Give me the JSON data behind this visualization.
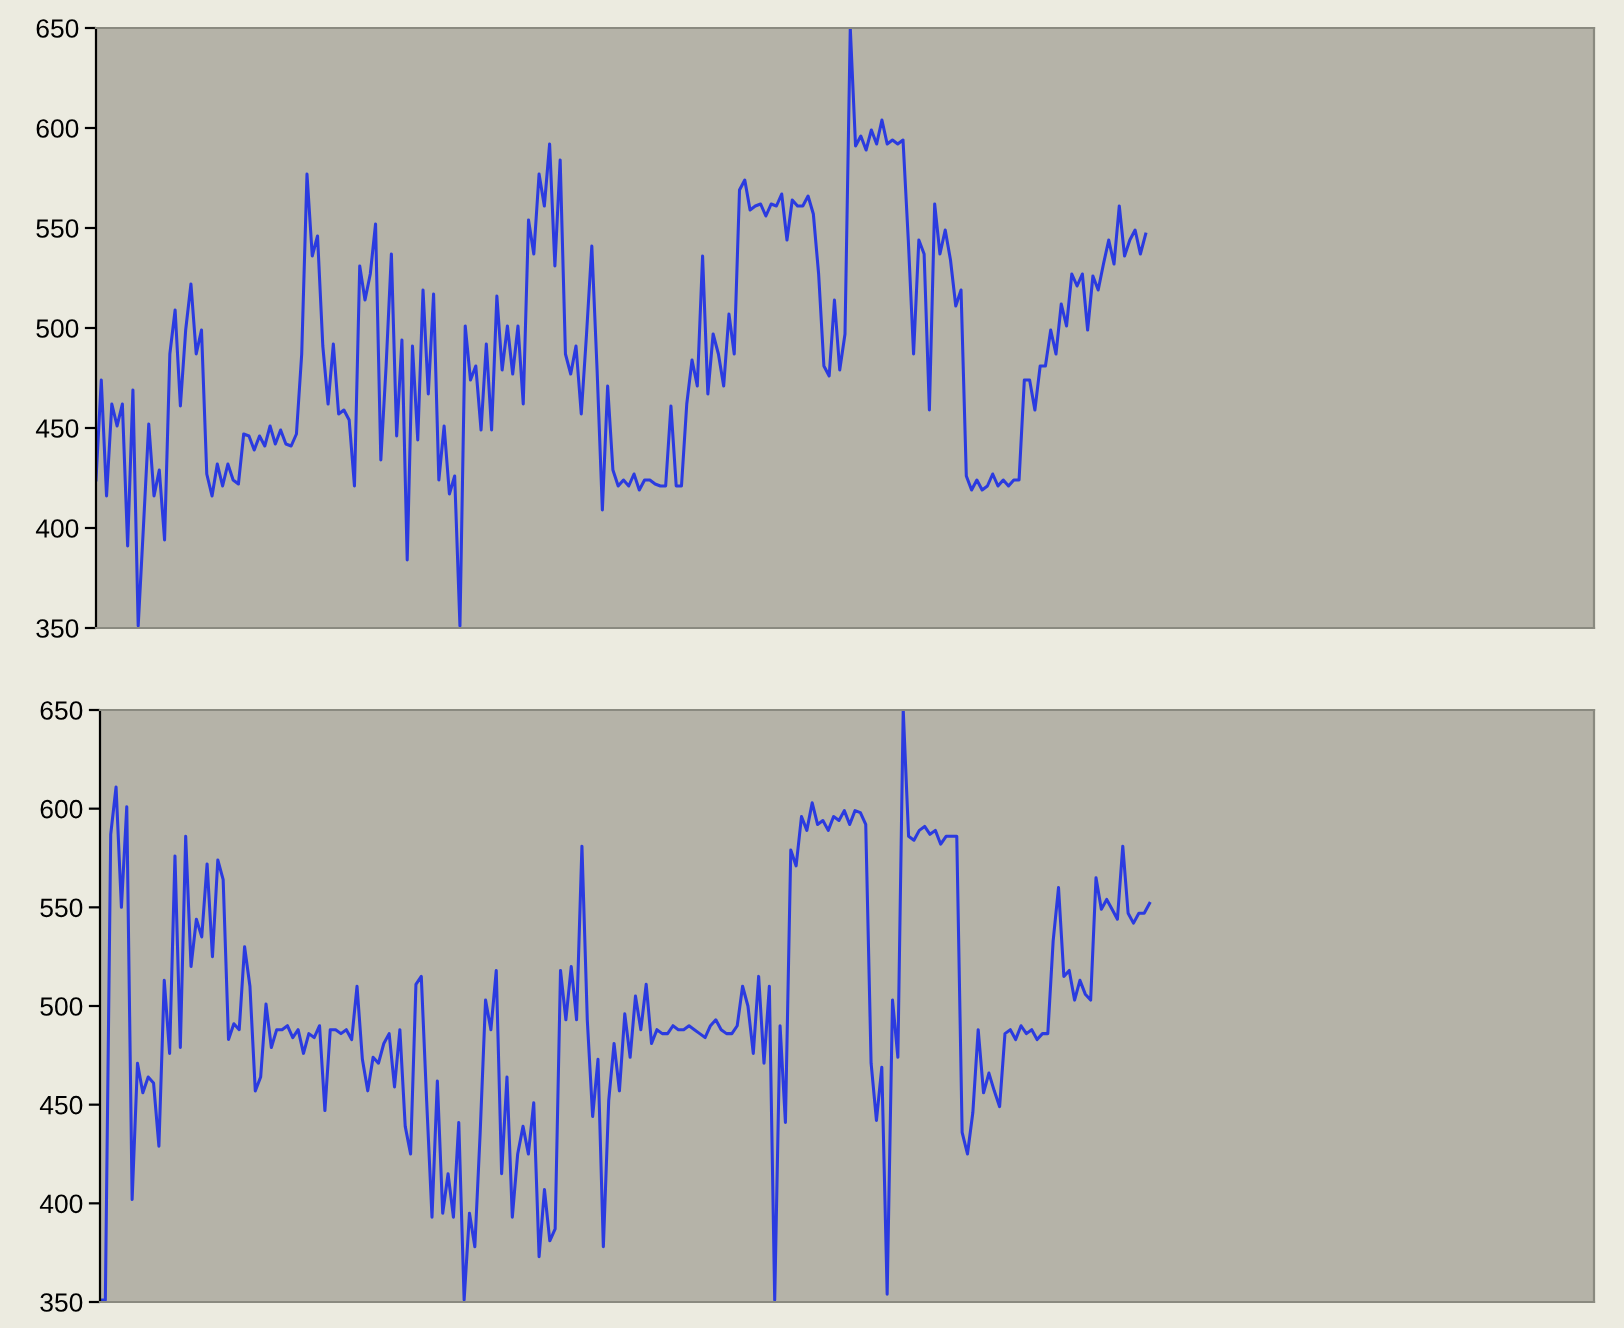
{
  "chart_data": [
    {
      "type": "line",
      "relative": false,
      "categories": [
        null,
        null,
        null,
        null,
        null,
        null,
        null,
        null,
        null,
        null,
        null,
        null,
        null,
        null,
        null,
        null,
        null,
        null,
        null,
        null,
        null,
        null,
        null,
        null,
        null,
        null,
        null,
        null,
        null,
        null,
        null,
        null,
        null,
        null,
        null,
        null,
        null,
        null,
        null,
        null,
        null,
        null,
        null,
        null,
        null,
        null,
        null,
        null,
        null,
        null,
        null,
        null,
        null,
        null,
        null,
        null,
        null,
        null,
        null,
        null,
        null,
        null,
        null,
        null,
        null,
        null,
        null,
        null,
        null,
        null,
        null,
        null,
        null,
        null,
        null,
        null,
        null,
        null,
        null,
        null,
        null,
        null,
        null,
        null,
        null,
        null,
        null,
        null,
        null,
        null,
        null,
        null,
        null,
        null,
        null,
        null,
        null,
        null,
        null,
        null,
        null,
        null,
        null,
        null,
        null,
        null,
        null,
        null,
        null,
        null,
        null,
        null,
        null,
        null,
        null,
        null,
        null,
        null,
        null,
        null,
        null,
        null,
        null,
        null,
        null,
        null,
        null,
        null,
        null,
        null,
        null,
        null,
        null,
        null,
        null,
        null,
        null,
        null,
        null,
        null,
        null,
        null,
        null,
        null,
        null,
        null,
        null,
        null,
        null,
        null,
        null,
        null,
        null,
        null,
        null,
        null,
        null,
        null,
        null,
        null,
        null,
        null,
        null,
        null,
        null,
        null,
        null,
        null,
        null,
        null,
        null,
        null,
        null,
        null,
        null,
        null,
        null,
        null,
        null,
        null,
        null,
        null,
        null,
        null,
        null,
        null,
        null,
        null,
        null,
        null,
        null,
        null,
        null,
        null,
        null,
        null,
        null,
        null,
        null,
        null,
        null,
        null,
        null,
        null,
        null,
        null,
        null,
        null,
        null,
        null,
        null,
        null,
        null,
        null,
        null,
        null,
        null,
        null,
        null,
        null,
        null,
        null,
        null,
        null,
        null,
        null,
        null,
        null,
        null,
        null,
        null,
        null,
        null,
        null,
        null,
        null,
        null,
        null,
        null,
        null,
        null,
        null,
        null,
        null,
        null,
        null,
        null,
        null,
        null,
        null,
        null,
        null,
        null,
        null,
        null,
        null,
        null,
        null,
        null,
        null,
        null,
        null,
        null,
        null,
        null,
        null,
        null,
        null,
        null,
        null,
        null,
        null,
        null,
        null,
        null,
        null,
        null,
        null,
        null,
        null,
        null,
        null,
        null,
        null,
        null
      ],
      "series": [
        {
          "color": "#2b3be0",
          "values": [
            424,
            474,
            416,
            462,
            451,
            462,
            391,
            469,
            351,
            401,
            452,
            416,
            429,
            394,
            487,
            509,
            461,
            499,
            522,
            487,
            499,
            427,
            416,
            432,
            421,
            432,
            424,
            422,
            447,
            446,
            439,
            446,
            441,
            451,
            442,
            449,
            442,
            441,
            447,
            487,
            577,
            536,
            546,
            491,
            462,
            492,
            457,
            459,
            454,
            421,
            531,
            514,
            527,
            552,
            434,
            481,
            537,
            446,
            494,
            384,
            491,
            444,
            519,
            467,
            517,
            424,
            451,
            417,
            426,
            351,
            501,
            474,
            481,
            449,
            492,
            449,
            516,
            479,
            501,
            477,
            501,
            462,
            554,
            537,
            577,
            561,
            592,
            531,
            584,
            487,
            477,
            491,
            457,
            497,
            541,
            479,
            409,
            471,
            429,
            421,
            424,
            421,
            427,
            419,
            424,
            424,
            422,
            421,
            421,
            461,
            421,
            421,
            462,
            484,
            471,
            536,
            467,
            497,
            487,
            471,
            507,
            487,
            569,
            574,
            559,
            561,
            562,
            556,
            562,
            561,
            567,
            544,
            564,
            561,
            561,
            566,
            557,
            527,
            481,
            476,
            514,
            479,
            497,
            650,
            591,
            596,
            589,
            599,
            592,
            604,
            592,
            594,
            592,
            594,
            544,
            487,
            544,
            537,
            459,
            562,
            537,
            549,
            534,
            511,
            519,
            426,
            419,
            424,
            419,
            421,
            427,
            421,
            424,
            421,
            424,
            424,
            474,
            474,
            459,
            481,
            481,
            499,
            487,
            512,
            501,
            527,
            521,
            527,
            499,
            526,
            519,
            532,
            544,
            532,
            561,
            536,
            544,
            549,
            537,
            547,
            null,
            null,
            null,
            null,
            null,
            null,
            null,
            null,
            null,
            null,
            null,
            null,
            null,
            null,
            null,
            null,
            null,
            null,
            null,
            null,
            null,
            null,
            null,
            null,
            null,
            null,
            null,
            null,
            null,
            null,
            null,
            null,
            null,
            null,
            null,
            null,
            null,
            null,
            null,
            null,
            null,
            null,
            null,
            null,
            null,
            null,
            null,
            null,
            null,
            null,
            null,
            null,
            null,
            null,
            null,
            null,
            null,
            null,
            null,
            null,
            null,
            null,
            null,
            null,
            null,
            null,
            null,
            null,
            null,
            null,
            null,
            null,
            null,
            null,
            null,
            null,
            null,
            null,
            null,
            null,
            null,
            null,
            null,
            null,
            null
          ]
        }
      ],
      "ylim": [
        350,
        650
      ],
      "yticks": [
        350,
        400,
        450,
        500,
        550,
        600,
        650
      ],
      "tick_labels": "y",
      "grid": false,
      "marker": "none",
      "line_style": "solid"
    },
    {
      "type": "line",
      "relative": false,
      "categories": [
        null,
        null,
        null,
        null,
        null,
        null,
        null,
        null,
        null,
        null,
        null,
        null,
        null,
        null,
        null,
        null,
        null,
        null,
        null,
        null,
        null,
        null,
        null,
        null,
        null,
        null,
        null,
        null,
        null,
        null,
        null,
        null,
        null,
        null,
        null,
        null,
        null,
        null,
        null,
        null,
        null,
        null,
        null,
        null,
        null,
        null,
        null,
        null,
        null,
        null,
        null,
        null,
        null,
        null,
        null,
        null,
        null,
        null,
        null,
        null,
        null,
        null,
        null,
        null,
        null,
        null,
        null,
        null,
        null,
        null,
        null,
        null,
        null,
        null,
        null,
        null,
        null,
        null,
        null,
        null,
        null,
        null,
        null,
        null,
        null,
        null,
        null,
        null,
        null,
        null,
        null,
        null,
        null,
        null,
        null,
        null,
        null,
        null,
        null,
        null,
        null,
        null,
        null,
        null,
        null,
        null,
        null,
        null,
        null,
        null,
        null,
        null,
        null,
        null,
        null,
        null,
        null,
        null,
        null,
        null,
        null,
        null,
        null,
        null,
        null,
        null,
        null,
        null,
        null,
        null,
        null,
        null,
        null,
        null,
        null,
        null,
        null,
        null,
        null,
        null,
        null,
        null,
        null,
        null,
        null,
        null,
        null,
        null,
        null,
        null,
        null,
        null,
        null,
        null,
        null,
        null,
        null,
        null,
        null,
        null,
        null,
        null,
        null,
        null,
        null,
        null,
        null,
        null,
        null,
        null,
        null,
        null,
        null,
        null,
        null,
        null,
        null,
        null,
        null,
        null,
        null,
        null,
        null,
        null,
        null,
        null,
        null,
        null,
        null,
        null,
        null,
        null,
        null,
        null,
        null,
        null,
        null,
        null,
        null,
        null,
        null,
        null,
        null,
        null,
        null,
        null,
        null,
        null,
        null,
        null,
        null,
        null,
        null,
        null,
        null,
        null,
        null,
        null,
        null,
        null,
        null,
        null,
        null,
        null,
        null,
        null,
        null,
        null,
        null,
        null,
        null,
        null,
        null,
        null,
        null,
        null,
        null,
        null,
        null,
        null,
        null,
        null,
        null,
        null,
        null,
        null,
        null,
        null,
        null,
        null,
        null,
        null,
        null,
        null,
        null,
        null,
        null,
        null,
        null,
        null,
        null,
        null,
        null,
        null,
        null,
        null,
        null,
        null,
        null,
        null,
        null,
        null,
        null,
        null,
        null,
        null,
        null,
        null,
        null,
        null
      ],
      "series": [
        {
          "color": "#2b3be0",
          "values": [
            351,
            351,
            587,
            611,
            550,
            601,
            402,
            471,
            456,
            464,
            461,
            429,
            513,
            476,
            576,
            479,
            586,
            520,
            544,
            535,
            572,
            525,
            574,
            564,
            483,
            491,
            488,
            530,
            510,
            457,
            464,
            501,
            479,
            488,
            488,
            490,
            484,
            488,
            476,
            486,
            484,
            490,
            447,
            488,
            488,
            486,
            488,
            483,
            510,
            473,
            457,
            474,
            471,
            481,
            486,
            459,
            488,
            439,
            425,
            511,
            515,
            452,
            393,
            462,
            395,
            415,
            393,
            441,
            351,
            395,
            378,
            436,
            503,
            488,
            518,
            415,
            464,
            393,
            425,
            439,
            425,
            451,
            373,
            407,
            381,
            387,
            518,
            493,
            520,
            493,
            581,
            493,
            444,
            473,
            378,
            452,
            481,
            457,
            496,
            474,
            505,
            488,
            511,
            481,
            488,
            486,
            486,
            490,
            488,
            488,
            490,
            488,
            486,
            484,
            490,
            493,
            488,
            486,
            486,
            490,
            510,
            500,
            476,
            515,
            471,
            510,
            351,
            490,
            441,
            579,
            571,
            596,
            589,
            603,
            592,
            594,
            589,
            596,
            594,
            599,
            592,
            599,
            598,
            592,
            471,
            442,
            469,
            354,
            503,
            474,
            650,
            586,
            584,
            589,
            591,
            587,
            589,
            582,
            586,
            586,
            586,
            436,
            425,
            446,
            488,
            456,
            466,
            457,
            449,
            486,
            488,
            483,
            490,
            486,
            488,
            483,
            486,
            486,
            533,
            560,
            515,
            518,
            503,
            513,
            506,
            503,
            565,
            549,
            554,
            549,
            544,
            581,
            547,
            542,
            547,
            547,
            552,
            null,
            null,
            null,
            null,
            null,
            null,
            null,
            null,
            null,
            null,
            null,
            null,
            null,
            null,
            null,
            null,
            null,
            null,
            null,
            null,
            null,
            null,
            null,
            null,
            null,
            null,
            null,
            null,
            null,
            null,
            null,
            null,
            null,
            null,
            null,
            null,
            null,
            null,
            null,
            null,
            null,
            null,
            null,
            null,
            null,
            null,
            null,
            null,
            null,
            null,
            null,
            null,
            null,
            null,
            null,
            null,
            null,
            null,
            null,
            null,
            null,
            null,
            null,
            null,
            null,
            null,
            null,
            null,
            null,
            null,
            null,
            null,
            null,
            null,
            null,
            null,
            null,
            null,
            null,
            null,
            null,
            null,
            null
          ]
        }
      ],
      "ylim": [
        350,
        650
      ],
      "yticks": [
        350,
        400,
        450,
        500,
        550,
        600,
        650
      ],
      "tick_labels": "y",
      "grid": false,
      "marker": "none",
      "line_style": "solid"
    }
  ]
}
